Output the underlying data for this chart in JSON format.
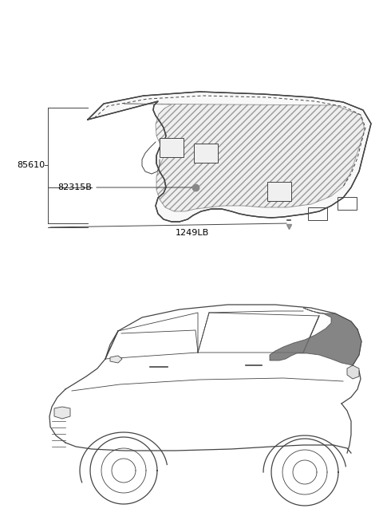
{
  "bg_color": "#ffffff",
  "line_color": "#444444",
  "label_color": "#000000",
  "gray_fill": "#888888",
  "hatch_fill": "#bbbbbb",
  "part_tray": "85610",
  "part_clip": "82315B",
  "part_screw": "1249LB"
}
